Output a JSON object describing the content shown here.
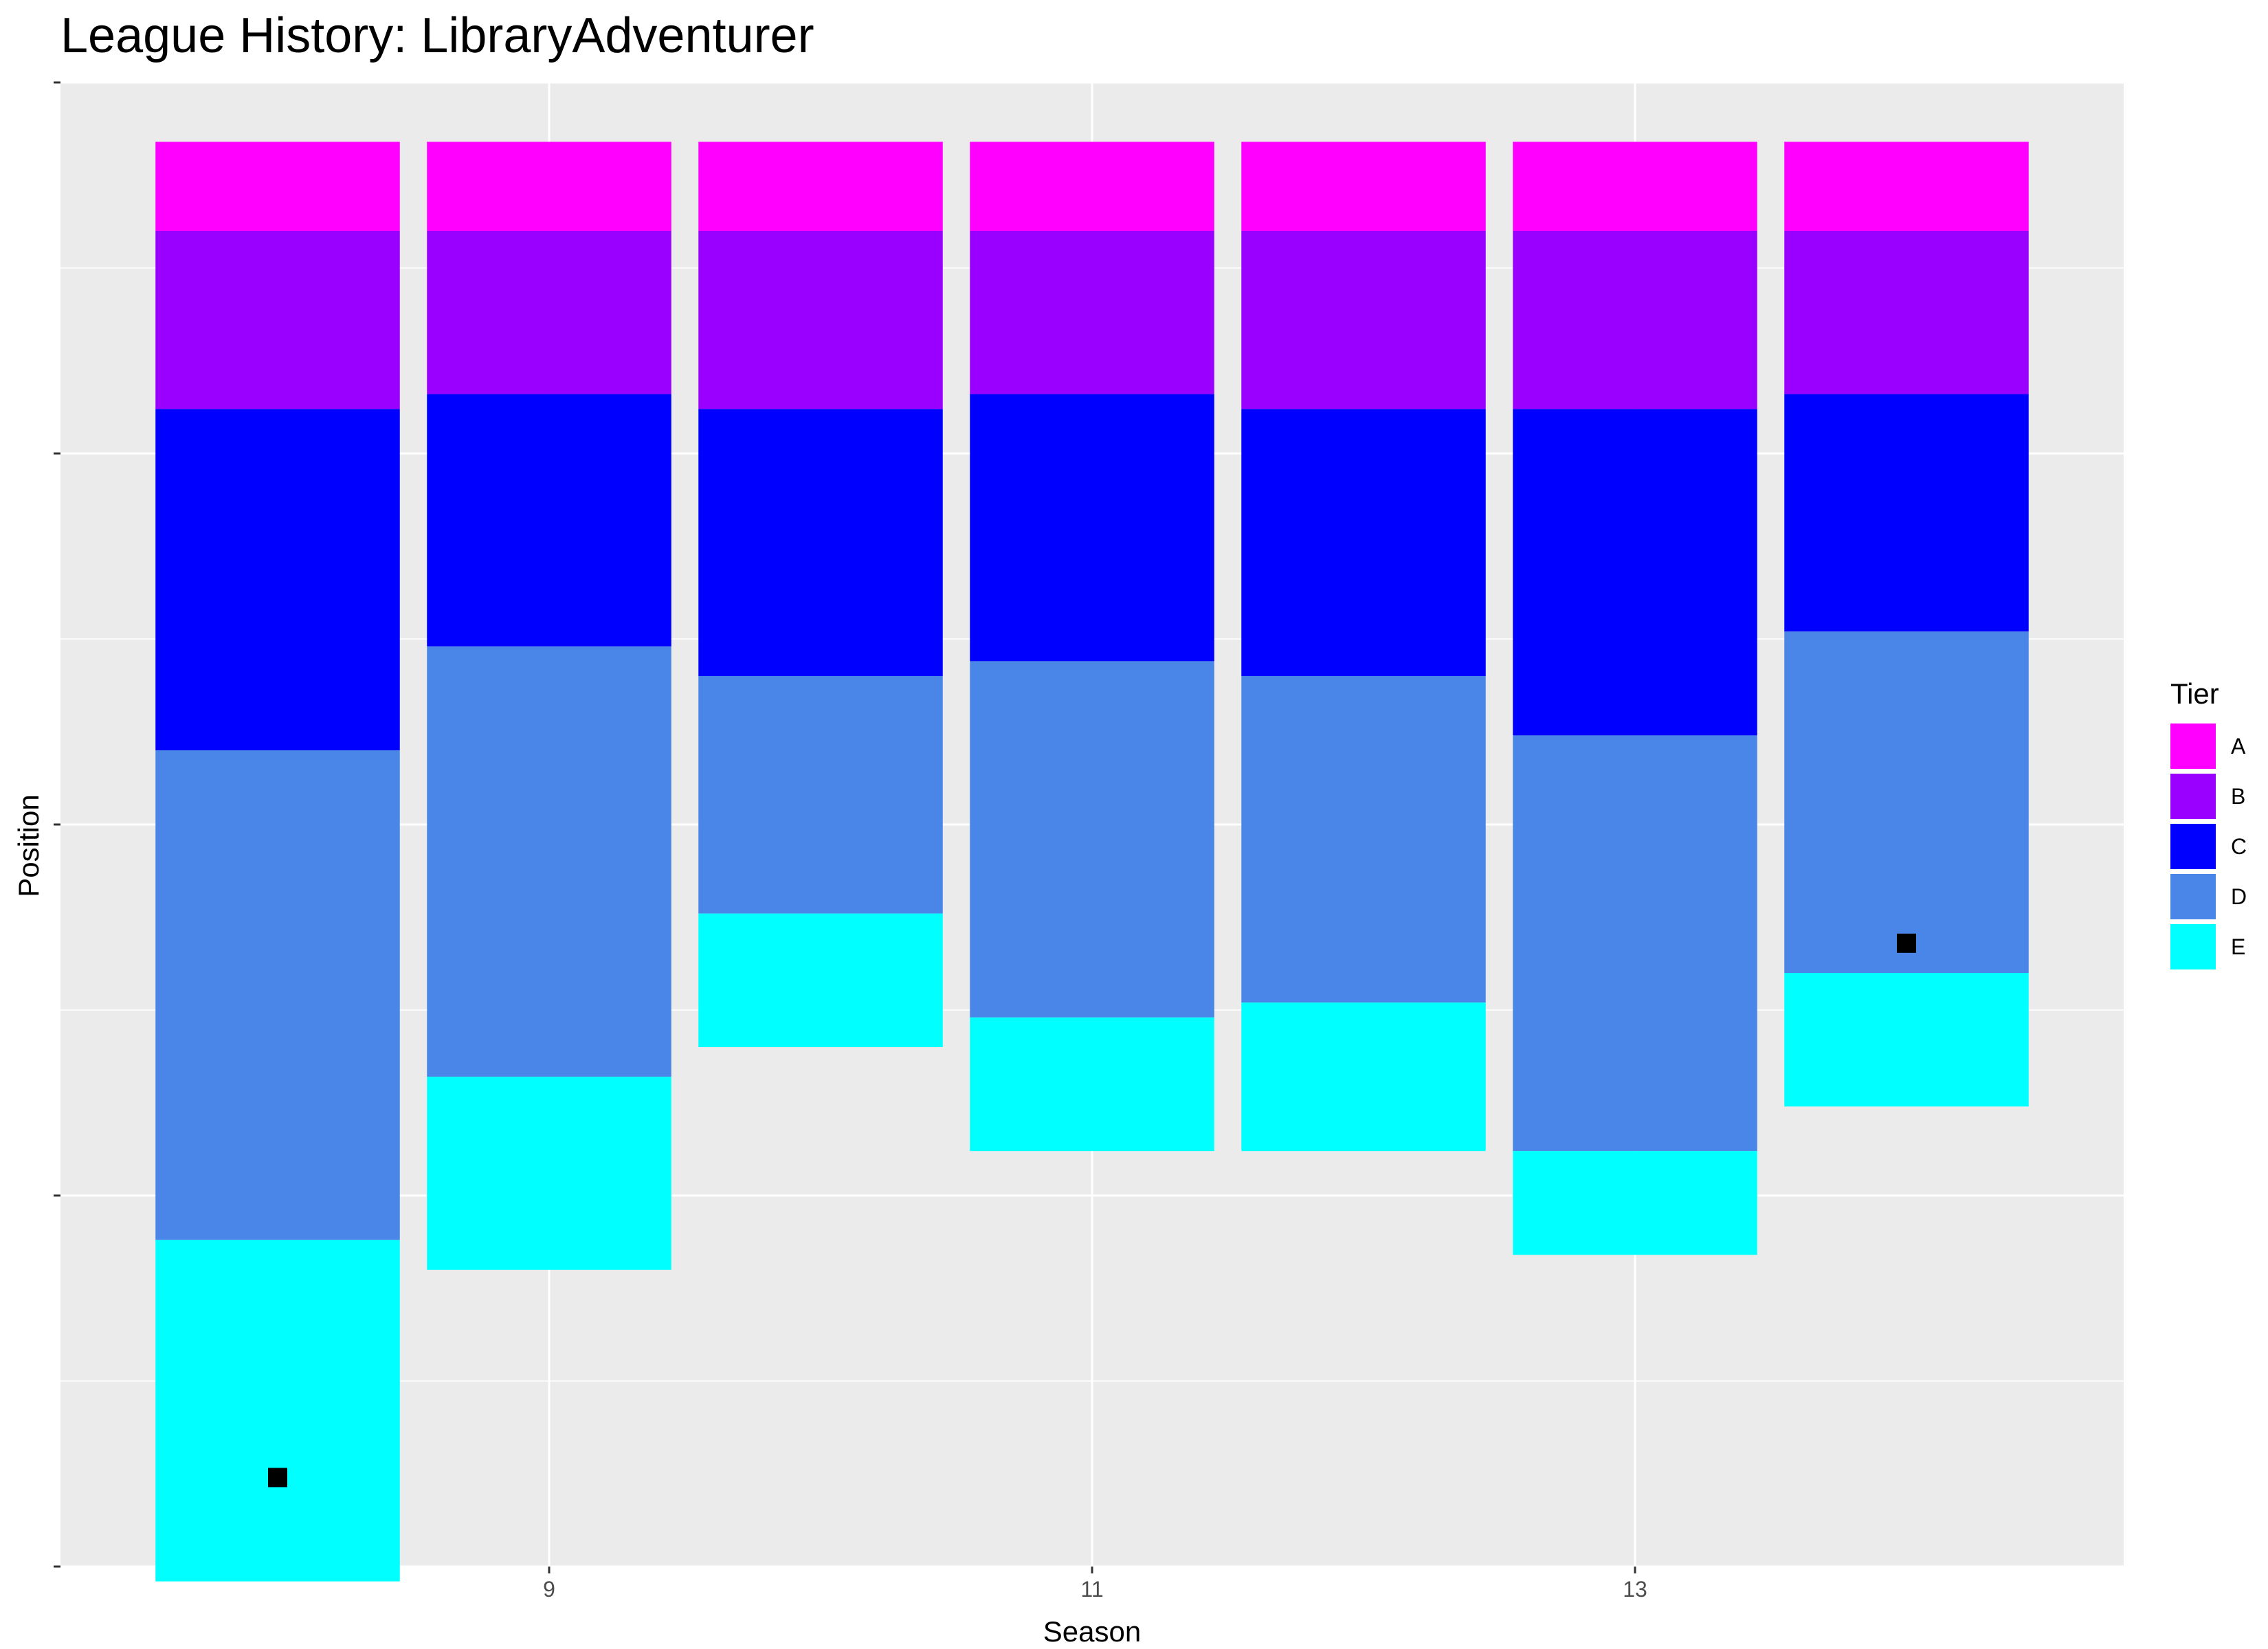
{
  "chart_data": {
    "type": "bar",
    "title": "League History: LibraryAdventurer",
    "xlabel": "Season",
    "ylabel": "Position",
    "x_ticks": [
      9,
      11,
      13
    ],
    "y_reversed": true,
    "ylim": [
      0,
      100
    ],
    "xlim": [
      7.2,
      14.8
    ],
    "grid": true,
    "legend": {
      "title": "Tier",
      "position": "right",
      "entries": [
        {
          "tier": "A",
          "color": "#ff00ff"
        },
        {
          "tier": "B",
          "color": "#9900ff"
        },
        {
          "tier": "C",
          "color": "#0000ff"
        },
        {
          "tier": "D",
          "color": "#4a86e8"
        },
        {
          "tier": "E",
          "color": "#00ffff"
        }
      ]
    },
    "seasons": [
      {
        "season": 8,
        "tiers": {
          "A": [
            4,
            10
          ],
          "B": [
            10,
            22
          ],
          "C": [
            22,
            45
          ],
          "D": [
            45,
            78
          ],
          "E": [
            78,
            101
          ]
        },
        "position": 94
      },
      {
        "season": 9,
        "tiers": {
          "A": [
            4,
            10
          ],
          "B": [
            10,
            21
          ],
          "C": [
            21,
            38
          ],
          "D": [
            38,
            67
          ],
          "E": [
            67,
            80
          ]
        }
      },
      {
        "season": 10,
        "tiers": {
          "A": [
            4,
            10
          ],
          "B": [
            10,
            22
          ],
          "C": [
            22,
            40
          ],
          "D": [
            40,
            56
          ],
          "E": [
            56,
            65
          ]
        }
      },
      {
        "season": 11,
        "tiers": {
          "A": [
            4,
            10
          ],
          "B": [
            10,
            21
          ],
          "C": [
            21,
            39
          ],
          "D": [
            39,
            63
          ],
          "E": [
            63,
            72
          ]
        }
      },
      {
        "season": 12,
        "tiers": {
          "A": [
            4,
            10
          ],
          "B": [
            10,
            22
          ],
          "C": [
            22,
            40
          ],
          "D": [
            40,
            62
          ],
          "E": [
            62,
            72
          ]
        }
      },
      {
        "season": 13,
        "tiers": {
          "A": [
            4,
            10
          ],
          "B": [
            10,
            22
          ],
          "C": [
            22,
            44
          ],
          "D": [
            44,
            72
          ],
          "E": [
            72,
            79
          ]
        }
      },
      {
        "season": 14,
        "tiers": {
          "A": [
            4,
            10
          ],
          "B": [
            10,
            21
          ],
          "C": [
            21,
            37
          ],
          "D": [
            37,
            60
          ],
          "E": [
            60,
            69
          ]
        },
        "position": 58
      }
    ]
  }
}
